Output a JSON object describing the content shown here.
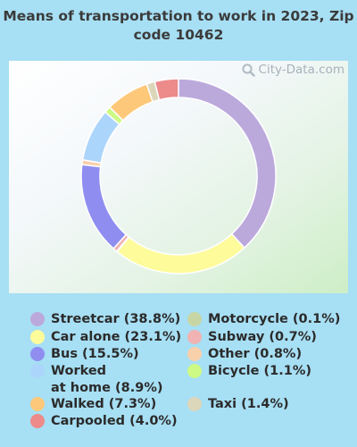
{
  "title": "Means of transportation to work in 2023, Zip code 10462",
  "watermark": "City-Data.com",
  "chart_data": {
    "type": "pie",
    "title": "Means of transportation to work in 2023, Zip code 10462",
    "slices": [
      {
        "label": "Streetcar",
        "legend": "Streetcar (38.8%)",
        "value": 38.8,
        "color": "#bba9dc"
      },
      {
        "label": "Car alone",
        "legend": "Car alone (23.1%)",
        "value": 23.1,
        "color": "#fdfb9a"
      },
      {
        "label": "Motorcycle",
        "legend": "Motorcycle (0.1%)",
        "value": 0.1,
        "color": "#c7d6a4"
      },
      {
        "label": "Subway",
        "legend": "Subway (0.7%)",
        "value": 0.7,
        "color": "#f0b2b2"
      },
      {
        "label": "Bus",
        "legend": "Bus (15.5%)",
        "value": 15.5,
        "color": "#8f8ef0"
      },
      {
        "label": "Other",
        "legend": "Other (0.8%)",
        "value": 0.8,
        "color": "#f8d0ac"
      },
      {
        "label": "Worked at home",
        "legend": "Worked\nat home (8.9%)",
        "value": 8.9,
        "color": "#acd5fb"
      },
      {
        "label": "Bicycle",
        "legend": "Bicycle (1.1%)",
        "value": 1.1,
        "color": "#cdf985"
      },
      {
        "label": "Walked",
        "legend": "Walked (7.3%)",
        "value": 7.3,
        "color": "#fec87a"
      },
      {
        "label": "Taxi",
        "legend": "Taxi (1.4%)",
        "value": 1.4,
        "color": "#dcd6bb"
      },
      {
        "label": "Carpooled",
        "legend": "Carpooled (4.0%)",
        "value": 4.0,
        "color": "#ed8a8a"
      }
    ],
    "legend_order": [
      "Streetcar",
      "Car alone",
      "Bus",
      "Worked at home",
      "Walked",
      "Carpooled",
      "Motorcycle",
      "Subway",
      "Other",
      "Bicycle",
      "Taxi"
    ]
  }
}
